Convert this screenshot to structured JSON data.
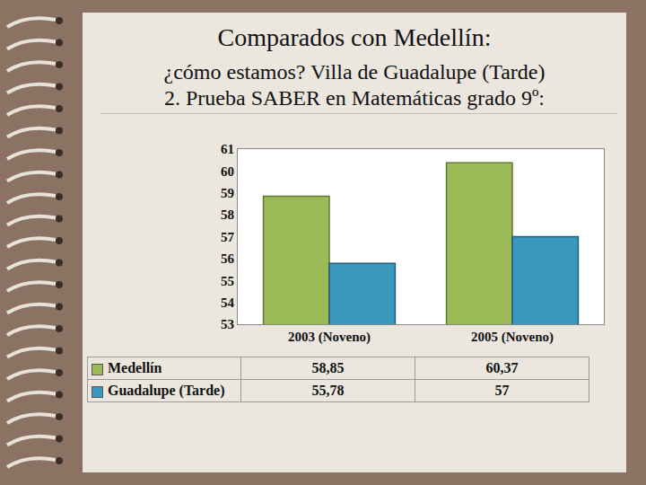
{
  "chart_data": {
    "type": "bar",
    "title": "Comparados con Medellín:",
    "subtitle": [
      "¿cómo estamos? Villa de Guadalupe (Tarde)",
      "2. Prueba SABER en Matemáticas grado 9º:"
    ],
    "categories": [
      "2003 (Noveno)",
      "2005 (Noveno)"
    ],
    "series": [
      {
        "name": "Medellín",
        "color": "#9bbb59",
        "values": [
          58.85,
          60.37
        ],
        "value_labels": [
          "58,85",
          "60,37"
        ]
      },
      {
        "name": "Guadalupe (Tarde)",
        "color": "#3a97bd",
        "values": [
          55.78,
          57
        ],
        "value_labels": [
          "55,78",
          "57"
        ]
      }
    ],
    "ylim": [
      53,
      61
    ],
    "yticks": [
      53,
      54,
      55,
      56,
      57,
      58,
      59,
      60,
      61
    ],
    "grid": false
  }
}
